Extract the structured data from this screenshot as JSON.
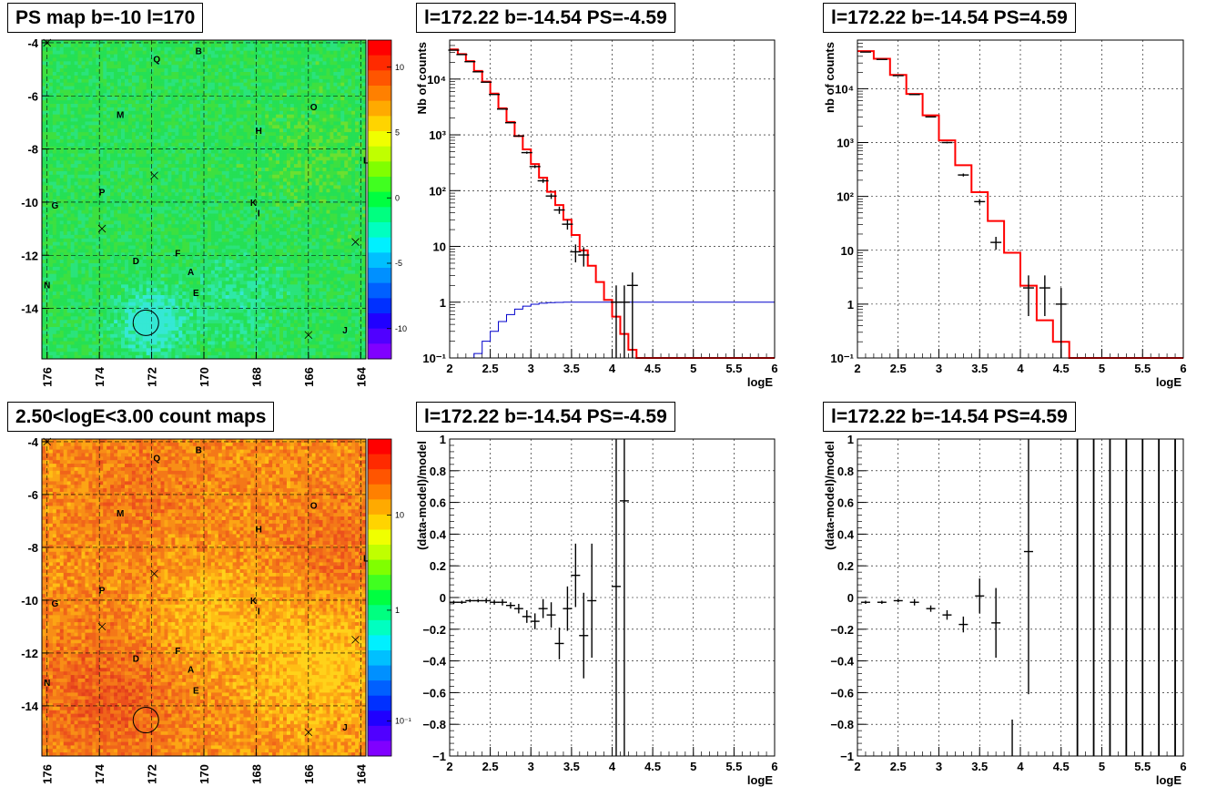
{
  "titles": {
    "map1": "PS map b=-10 l=170",
    "map2": "2.50<logE<3.00 count maps",
    "spec1": "l=172.22 b=-14.54 PS=-4.59",
    "spec2": "l=172.22 b=-14.54 PS=4.59",
    "res1": "l=172.22 b=-14.54 PS=-4.59",
    "res2": "l=172.22 b=-14.54 PS=4.59"
  },
  "colors": {
    "model": "#ff0000",
    "background": "#0000cc",
    "data": "#000000",
    "map1_base": "#22e04a",
    "map2_base": "#f06a1a"
  },
  "chart_data": [
    {
      "type": "heatmap",
      "id": "map1",
      "title": "PS map b=-10 l=170",
      "x_ticks": [
        "176",
        "174",
        "172",
        "170",
        "168",
        "166",
        "164"
      ],
      "y_ticks": [
        "-4",
        "-6",
        "-8",
        "-10",
        "-12",
        "-14"
      ],
      "xlim": [
        176.2,
        163.8
      ],
      "ylim": [
        -15.9,
        -3.9
      ],
      "colorbar_ticks": [
        "10",
        "5",
        "0",
        "-5",
        "-10"
      ],
      "colorbar_range": [
        -12,
        12
      ],
      "labels": [
        {
          "t": "Q",
          "l": 171.8,
          "b": -4.6
        },
        {
          "t": "B",
          "l": 170.2,
          "b": -4.3
        },
        {
          "t": "M",
          "l": 173.2,
          "b": -6.7
        },
        {
          "t": "O",
          "l": 165.8,
          "b": -6.4
        },
        {
          "t": "H",
          "l": 167.9,
          "b": -7.3
        },
        {
          "t": "L",
          "l": 163.8,
          "b": -8.4
        },
        {
          "t": "G",
          "l": 175.7,
          "b": -10.1
        },
        {
          "t": "P",
          "l": 173.9,
          "b": -9.6
        },
        {
          "t": "K",
          "l": 168.1,
          "b": -10.0
        },
        {
          "t": "I",
          "l": 167.9,
          "b": -10.4
        },
        {
          "t": "D",
          "l": 172.6,
          "b": -12.2
        },
        {
          "t": "F",
          "l": 171.0,
          "b": -11.9
        },
        {
          "t": "A",
          "l": 170.5,
          "b": -12.6
        },
        {
          "t": "E",
          "l": 170.3,
          "b": -13.4
        },
        {
          "t": "N",
          "l": 176.0,
          "b": -13.1
        },
        {
          "t": "J",
          "l": 164.6,
          "b": -14.8
        }
      ],
      "crosses": [
        {
          "l": 176.0,
          "b": -4.0
        },
        {
          "l": 171.9,
          "b": -9.0
        },
        {
          "l": 173.9,
          "b": -11.0
        },
        {
          "l": 164.2,
          "b": -11.5
        },
        {
          "l": 166.0,
          "b": -15.0
        }
      ],
      "circle": {
        "l": 172.22,
        "b": -14.54
      }
    },
    {
      "type": "heatmap",
      "id": "map2",
      "title": "2.50<logE<3.00 count maps",
      "x_ticks": [
        "176",
        "174",
        "172",
        "170",
        "168",
        "166",
        "164"
      ],
      "y_ticks": [
        "-4",
        "-6",
        "-8",
        "-10",
        "-12",
        "-14"
      ],
      "xlim": [
        176.2,
        163.8
      ],
      "ylim": [
        -15.9,
        -3.9
      ],
      "colorbar_ticks": [
        "10",
        "1",
        "10⁻¹"
      ],
      "log_scale": true
    },
    {
      "type": "line",
      "id": "spec1",
      "title": "l=172.22 b=-14.54 PS=-4.59",
      "xlabel": "logE",
      "ylabel": "Nb of counts",
      "xlim": [
        2,
        6
      ],
      "ylim": [
        0.1,
        50000
      ],
      "log_y": true,
      "x_ticks": [
        "2",
        "2.5",
        "3",
        "3.5",
        "4",
        "4.5",
        "5",
        "5.5",
        "6"
      ],
      "y_ticks": [
        "10⁻¹",
        "1",
        "10",
        "10²",
        "10³",
        "10⁴"
      ],
      "model_edges": [
        2.0,
        2.1,
        2.2,
        2.3,
        2.4,
        2.5,
        2.6,
        2.7,
        2.8,
        2.9,
        3.0,
        3.1,
        3.2,
        3.3,
        3.4,
        3.5,
        3.6,
        3.7,
        3.8,
        3.9,
        4.0,
        4.1,
        4.2,
        4.3,
        4.4,
        4.5,
        6.0
      ],
      "model_values": [
        34000,
        28000,
        21000,
        14000,
        9000,
        5500,
        3000,
        1700,
        950,
        550,
        300,
        170,
        95,
        55,
        30,
        16,
        8.5,
        4.5,
        2.3,
        1.1,
        0.55,
        0.27,
        0.14,
        0.1,
        0.1,
        0.1
      ],
      "bkg_edges": [
        2.0,
        2.3,
        2.4,
        2.5,
        2.6,
        2.7,
        2.8,
        2.9,
        3.0,
        3.1,
        3.2,
        3.3,
        3.4,
        3.5,
        6.0
      ],
      "bkg_values": [
        0.1,
        0.12,
        0.2,
        0.3,
        0.45,
        0.6,
        0.75,
        0.85,
        0.92,
        0.96,
        0.98,
        0.99,
        1.0,
        1.0
      ],
      "points": [
        {
          "x": 2.05,
          "y": 33000
        },
        {
          "x": 2.15,
          "y": 27500
        },
        {
          "x": 2.25,
          "y": 20500
        },
        {
          "x": 2.35,
          "y": 13500
        },
        {
          "x": 2.45,
          "y": 8800
        },
        {
          "x": 2.55,
          "y": 5300
        },
        {
          "x": 2.65,
          "y": 2900
        },
        {
          "x": 2.75,
          "y": 1650
        },
        {
          "x": 2.85,
          "y": 950
        },
        {
          "x": 2.95,
          "y": 480
        },
        {
          "x": 3.05,
          "y": 270
        },
        {
          "x": 3.15,
          "y": 150
        },
        {
          "x": 3.25,
          "y": 80
        },
        {
          "x": 3.35,
          "y": 45
        },
        {
          "x": 3.45,
          "y": 25
        },
        {
          "x": 3.55,
          "y": 8
        },
        {
          "x": 3.65,
          "y": 7
        },
        {
          "x": 4.05,
          "y": 1,
          "lo": 0.1
        },
        {
          "x": 4.15,
          "y": 1,
          "lo": 0.1
        },
        {
          "x": 4.25,
          "y": 2,
          "lo": 0.1
        }
      ]
    },
    {
      "type": "line",
      "id": "spec2",
      "title": "l=172.22 b=-14.54 PS=4.59",
      "xlabel": "logE",
      "ylabel": "nb of counts",
      "xlim": [
        2,
        6
      ],
      "ylim": [
        0.1,
        80000
      ],
      "log_y": true,
      "x_ticks": [
        "2",
        "2.5",
        "3",
        "3.5",
        "4",
        "4.5",
        "5",
        "5.5",
        "6"
      ],
      "y_ticks": [
        "10⁻¹",
        "1",
        "10",
        "10²",
        "10³",
        "10⁴"
      ],
      "model_edges": [
        2.0,
        2.2,
        2.4,
        2.6,
        2.8,
        3.0,
        3.2,
        3.4,
        3.6,
        3.8,
        4.0,
        4.2,
        4.4,
        4.6,
        6.0
      ],
      "model_values": [
        50000,
        36000,
        18000,
        8000,
        3200,
        1100,
        380,
        120,
        35,
        9,
        2.2,
        0.5,
        0.2,
        0.1
      ],
      "points": [
        {
          "x": 2.1,
          "y": 48000
        },
        {
          "x": 2.3,
          "y": 35000
        },
        {
          "x": 2.5,
          "y": 17500
        },
        {
          "x": 2.7,
          "y": 7800
        },
        {
          "x": 2.9,
          "y": 3000
        },
        {
          "x": 3.1,
          "y": 1000
        },
        {
          "x": 3.3,
          "y": 250
        },
        {
          "x": 3.5,
          "y": 80
        },
        {
          "x": 3.7,
          "y": 14
        },
        {
          "x": 4.1,
          "y": 2,
          "lo": 0.6
        },
        {
          "x": 4.3,
          "y": 2,
          "lo": 0.6
        },
        {
          "x": 4.5,
          "y": 1,
          "lo": 0.1
        }
      ]
    },
    {
      "type": "scatter",
      "id": "res1",
      "title": "l=172.22 b=-14.54 PS=-4.59",
      "xlabel": "logE",
      "ylabel": "(data-model)/model",
      "xlim": [
        2,
        6
      ],
      "ylim": [
        -1,
        1
      ],
      "x_ticks": [
        "2",
        "2.5",
        "3",
        "3.5",
        "4",
        "4.5",
        "5",
        "5.5",
        "6"
      ],
      "y_ticks": [
        "−1",
        "−0.8",
        "−0.6",
        "−0.4",
        "−0.2",
        "0",
        "0.2",
        "0.4",
        "0.6",
        "0.8",
        "1"
      ],
      "points": [
        {
          "x": 2.05,
          "y": -0.03,
          "e": 0.01
        },
        {
          "x": 2.15,
          "y": -0.03,
          "e": 0.01
        },
        {
          "x": 2.25,
          "y": -0.02,
          "e": 0.01
        },
        {
          "x": 2.35,
          "y": -0.02,
          "e": 0.01
        },
        {
          "x": 2.45,
          "y": -0.02,
          "e": 0.015
        },
        {
          "x": 2.55,
          "y": -0.03,
          "e": 0.015
        },
        {
          "x": 2.65,
          "y": -0.03,
          "e": 0.02
        },
        {
          "x": 2.75,
          "y": -0.05,
          "e": 0.02
        },
        {
          "x": 2.85,
          "y": -0.07,
          "e": 0.03
        },
        {
          "x": 2.95,
          "y": -0.12,
          "e": 0.04
        },
        {
          "x": 3.05,
          "y": -0.15,
          "e": 0.05
        },
        {
          "x": 3.15,
          "y": -0.07,
          "e": 0.06
        },
        {
          "x": 3.25,
          "y": -0.11,
          "e": 0.08
        },
        {
          "x": 3.35,
          "y": -0.29,
          "e": 0.1
        },
        {
          "x": 3.45,
          "y": -0.07,
          "e": 0.14
        },
        {
          "x": 3.55,
          "y": 0.14,
          "e": 0.2
        },
        {
          "x": 3.65,
          "y": -0.24,
          "e": 0.27
        },
        {
          "x": 3.75,
          "y": -0.02,
          "e": 0.36
        },
        {
          "x": 4.05,
          "y": 0.07,
          "e": 1.2
        },
        {
          "x": 4.15,
          "y": 0.61,
          "e": 1.7
        }
      ]
    },
    {
      "type": "scatter",
      "id": "res2",
      "title": "l=172.22 b=-14.54 PS=4.59",
      "xlabel": "logE",
      "ylabel": "(data-model)/model",
      "xlim": [
        2,
        6
      ],
      "ylim": [
        -1,
        1
      ],
      "x_ticks": [
        "2",
        "2.5",
        "3",
        "3.5",
        "4",
        "4.5",
        "5",
        "5.5",
        "6"
      ],
      "y_ticks": [
        "−1",
        "−0.8",
        "−0.6",
        "−0.4",
        "−0.2",
        "0",
        "0.2",
        "0.4",
        "0.6",
        "0.8",
        "1"
      ],
      "points": [
        {
          "x": 2.1,
          "y": -0.03,
          "e": 0.01
        },
        {
          "x": 2.3,
          "y": -0.03,
          "e": 0.01
        },
        {
          "x": 2.5,
          "y": -0.02,
          "e": 0.01
        },
        {
          "x": 2.7,
          "y": -0.03,
          "e": 0.02
        },
        {
          "x": 2.9,
          "y": -0.07,
          "e": 0.02
        },
        {
          "x": 3.1,
          "y": -0.11,
          "e": 0.03
        },
        {
          "x": 3.3,
          "y": -0.17,
          "e": 0.05
        },
        {
          "x": 3.5,
          "y": 0.01,
          "e": 0.11
        },
        {
          "x": 3.7,
          "y": -0.16,
          "e": 0.22
        },
        {
          "x": 4.1,
          "y": 0.29,
          "e": 0.9
        }
      ],
      "full_bars": [
        4.7,
        4.9,
        5.1,
        5.3,
        5.5,
        5.7,
        5.9
      ],
      "partial_bars": [
        {
          "x": 3.9,
          "lo": -1,
          "hi": -0.77
        }
      ]
    }
  ]
}
